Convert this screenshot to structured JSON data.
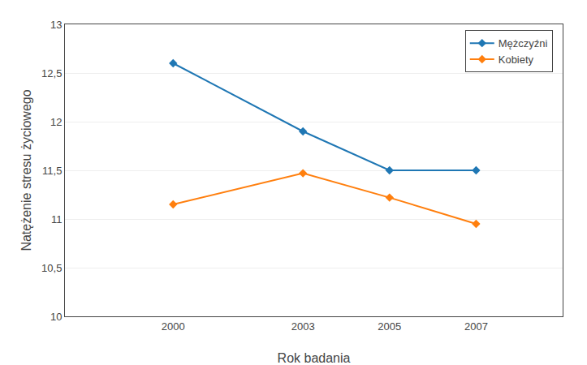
{
  "chart_data": {
    "type": "line",
    "xlabel": "Rok badania",
    "ylabel": "Natężenie stresu życiowego",
    "x": [
      2000,
      2003,
      2005,
      2007
    ],
    "series": [
      {
        "name": "Mężczyźni",
        "values": [
          12.6,
          11.9,
          11.5,
          11.5
        ]
      },
      {
        "name": "Kobiety",
        "values": [
          11.15,
          11.47,
          11.22,
          10.95
        ]
      }
    ],
    "xlim": [
      1997.5,
      2009
    ],
    "xticks": [
      2000,
      2003,
      2005,
      2007
    ],
    "ylim": [
      10,
      13
    ],
    "yticks": [
      10,
      {
        "value": 10.5,
        "label": "10,5"
      },
      11,
      {
        "value": 11.5,
        "label": "11,5"
      },
      12,
      {
        "value": 12.5,
        "label": "12,5"
      },
      13
    ],
    "grid": "y",
    "legend": "upper right",
    "marker": "diamond"
  }
}
